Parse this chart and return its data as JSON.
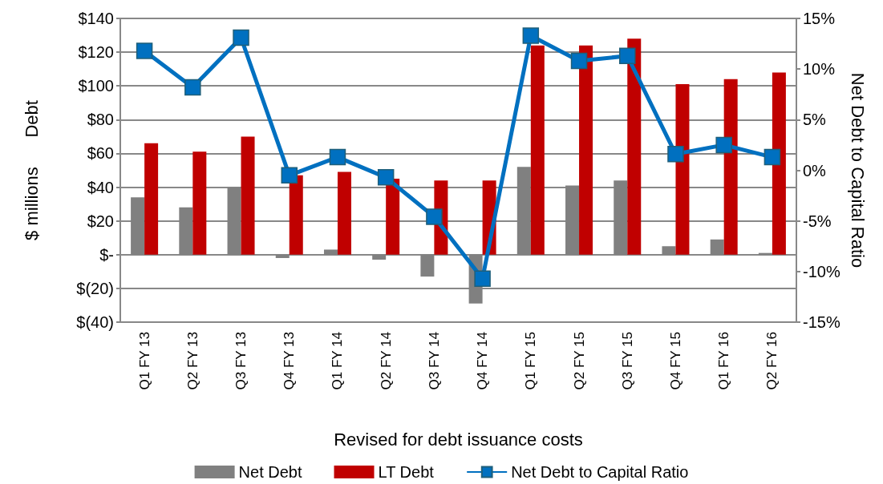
{
  "chart_data": {
    "type": "bar",
    "xlabel": "Revised for debt issuance costs",
    "ylabel": "$ millions      Debt",
    "y2label": "Net Debt to Capital Ratio",
    "categories": [
      "Q1 FY 13",
      "Q2 FY 13",
      "Q3 FY 13",
      "Q4 FY 13",
      "Q1 FY 14",
      "Q2 FY 14",
      "Q3 FY 14",
      "Q4 FY 14",
      "Q1 FY 15",
      "Q2 FY 15",
      "Q3 FY 15",
      "Q4 FY 15",
      "Q1 FY 16",
      "Q2 FY 16"
    ],
    "series": [
      {
        "name": "Net Debt",
        "color": "#808080",
        "values": [
          34,
          28,
          40,
          -2,
          3,
          -3,
          -13,
          -29,
          52,
          41,
          44,
          5,
          9,
          1
        ]
      },
      {
        "name": "LT Debt",
        "color": "#c00000",
        "values": [
          66,
          61,
          70,
          47,
          49,
          45,
          44,
          44,
          124,
          124,
          128,
          101,
          104,
          108
        ]
      },
      {
        "name": "Net Debt to Capital Ratio",
        "type": "line",
        "axis": "y2",
        "color": "#0070c0",
        "marker": "square",
        "values": [
          11.8,
          8.2,
          13.1,
          -0.5,
          1.3,
          -0.7,
          -4.6,
          -10.7,
          13.3,
          10.8,
          11.3,
          1.6,
          2.5,
          1.3
        ]
      }
    ],
    "ylim": [
      -40,
      140
    ],
    "yticks": [
      {
        "value": -40,
        "label": "$(40)"
      },
      {
        "value": -20,
        "label": "$(20)"
      },
      {
        "value": 0,
        "label": "$-"
      },
      {
        "value": 20,
        "label": "$20"
      },
      {
        "value": 40,
        "label": "$40"
      },
      {
        "value": 60,
        "label": "$60"
      },
      {
        "value": 80,
        "label": "$80"
      },
      {
        "value": 100,
        "label": "$100"
      },
      {
        "value": 120,
        "label": "$120"
      },
      {
        "value": 140,
        "label": "$140"
      }
    ],
    "y2lim": [
      -15,
      15
    ],
    "y2ticks": [
      {
        "value": -15,
        "label": "-15%"
      },
      {
        "value": -10,
        "label": "-10%"
      },
      {
        "value": -5,
        "label": "-5%"
      },
      {
        "value": 0,
        "label": "0%"
      },
      {
        "value": 5,
        "label": "5%"
      },
      {
        "value": 10,
        "label": "10%"
      },
      {
        "value": 15,
        "label": "15%"
      }
    ],
    "grid": "y",
    "legend": "bottom"
  }
}
